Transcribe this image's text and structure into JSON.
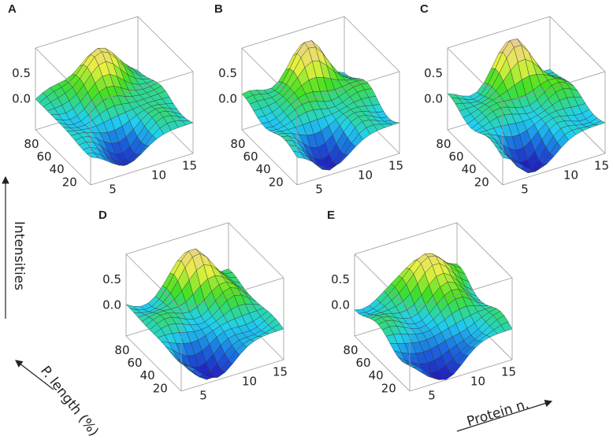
{
  "panels": [
    {
      "label": "A",
      "z_ticks": [
        "0.5",
        "0.0"
      ],
      "y_ticks": [
        "80",
        "60",
        "40",
        "20"
      ],
      "x_ticks": [
        "5",
        "10",
        "15"
      ]
    },
    {
      "label": "B",
      "z_ticks": [
        "0.5",
        "0.0"
      ],
      "y_ticks": [
        "80",
        "60",
        "40",
        "20"
      ],
      "x_ticks": [
        "5",
        "10",
        "15"
      ]
    },
    {
      "label": "C",
      "z_ticks": [
        "0.5",
        "0.0"
      ],
      "y_ticks": [
        "80",
        "60",
        "40",
        "20"
      ],
      "x_ticks": [
        "5",
        "10",
        "15"
      ]
    },
    {
      "label": "D",
      "z_ticks": [
        "0.5",
        "0.0"
      ],
      "y_ticks": [
        "80",
        "60",
        "40",
        "20"
      ],
      "x_ticks": [
        "5",
        "10",
        "15"
      ]
    },
    {
      "label": "E",
      "z_ticks": [
        "0.5",
        "0.0"
      ],
      "y_ticks": [
        "80",
        "60",
        "40",
        "20"
      ],
      "x_ticks": [
        "5",
        "10",
        "15"
      ]
    }
  ],
  "axis_titles": {
    "z": "Intensities",
    "y": "P. length (%)",
    "x": "Protein n."
  }
}
